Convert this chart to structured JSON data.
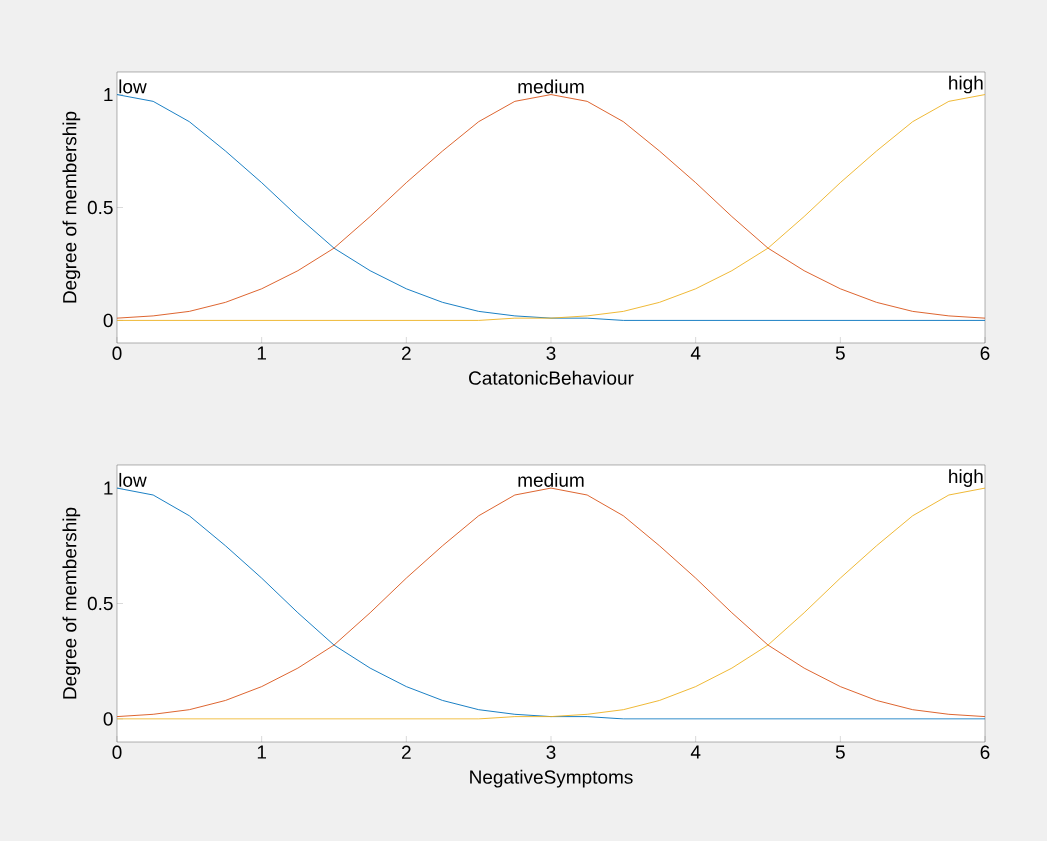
{
  "chart_data": [
    {
      "type": "line",
      "xlabel": "CatatonicBehaviour",
      "ylabel": "Degree of membership",
      "xlim": [
        0,
        6
      ],
      "ylim": [
        -0.1,
        1.1
      ],
      "xticks": [
        0,
        1,
        2,
        3,
        4,
        5,
        6
      ],
      "yticks": [
        0,
        0.5,
        1
      ],
      "grid": false,
      "legend": false,
      "x": [
        0,
        0.25,
        0.5,
        0.75,
        1,
        1.25,
        1.5,
        1.75,
        2,
        2.25,
        2.5,
        2.75,
        3,
        3.25,
        3.5,
        3.75,
        4,
        4.25,
        4.5,
        4.75,
        5,
        5.25,
        5.5,
        5.75,
        6
      ],
      "series": [
        {
          "name": "low",
          "color": "#0072bd",
          "values": [
            1,
            0.97,
            0.88,
            0.75,
            0.61,
            0.46,
            0.32,
            0.22,
            0.14,
            0.08,
            0.04,
            0.02,
            0.01,
            0.01,
            0,
            0,
            0,
            0,
            0,
            0,
            0,
            0,
            0,
            0,
            0
          ]
        },
        {
          "name": "medium",
          "color": "#d95319",
          "values": [
            0.01,
            0.02,
            0.04,
            0.08,
            0.14,
            0.22,
            0.32,
            0.46,
            0.61,
            0.75,
            0.88,
            0.97,
            1,
            0.97,
            0.88,
            0.75,
            0.61,
            0.46,
            0.32,
            0.22,
            0.14,
            0.08,
            0.04,
            0.02,
            0.01
          ]
        },
        {
          "name": "high",
          "color": "#edb120",
          "values": [
            0,
            0,
            0,
            0,
            0,
            0,
            0,
            0,
            0,
            0,
            0,
            0.01,
            0.01,
            0.02,
            0.04,
            0.08,
            0.14,
            0.22,
            0.32,
            0.46,
            0.61,
            0.75,
            0.88,
            0.97,
            1
          ]
        }
      ]
    },
    {
      "type": "line",
      "xlabel": "NegativeSymptoms",
      "ylabel": "Degree of membership",
      "xlim": [
        0,
        6
      ],
      "ylim": [
        -0.1,
        1.1
      ],
      "xticks": [
        0,
        1,
        2,
        3,
        4,
        5,
        6
      ],
      "yticks": [
        0,
        0.5,
        1
      ],
      "grid": false,
      "legend": false,
      "x": [
        0,
        0.25,
        0.5,
        0.75,
        1,
        1.25,
        1.5,
        1.75,
        2,
        2.25,
        2.5,
        2.75,
        3,
        3.25,
        3.5,
        3.75,
        4,
        4.25,
        4.5,
        4.75,
        5,
        5.25,
        5.5,
        5.75,
        6
      ],
      "series": [
        {
          "name": "low",
          "color": "#0072bd",
          "values": [
            1,
            0.97,
            0.88,
            0.75,
            0.61,
            0.46,
            0.32,
            0.22,
            0.14,
            0.08,
            0.04,
            0.02,
            0.01,
            0.01,
            0,
            0,
            0,
            0,
            0,
            0,
            0,
            0,
            0,
            0,
            0
          ]
        },
        {
          "name": "medium",
          "color": "#d95319",
          "values": [
            0.01,
            0.02,
            0.04,
            0.08,
            0.14,
            0.22,
            0.32,
            0.46,
            0.61,
            0.75,
            0.88,
            0.97,
            1,
            0.97,
            0.88,
            0.75,
            0.61,
            0.46,
            0.32,
            0.22,
            0.14,
            0.08,
            0.04,
            0.02,
            0.01
          ]
        },
        {
          "name": "high",
          "color": "#edb120",
          "values": [
            0,
            0,
            0,
            0,
            0,
            0,
            0,
            0,
            0,
            0,
            0,
            0.01,
            0.01,
            0.02,
            0.04,
            0.08,
            0.14,
            0.22,
            0.32,
            0.46,
            0.61,
            0.75,
            0.88,
            0.97,
            1
          ]
        }
      ]
    }
  ]
}
